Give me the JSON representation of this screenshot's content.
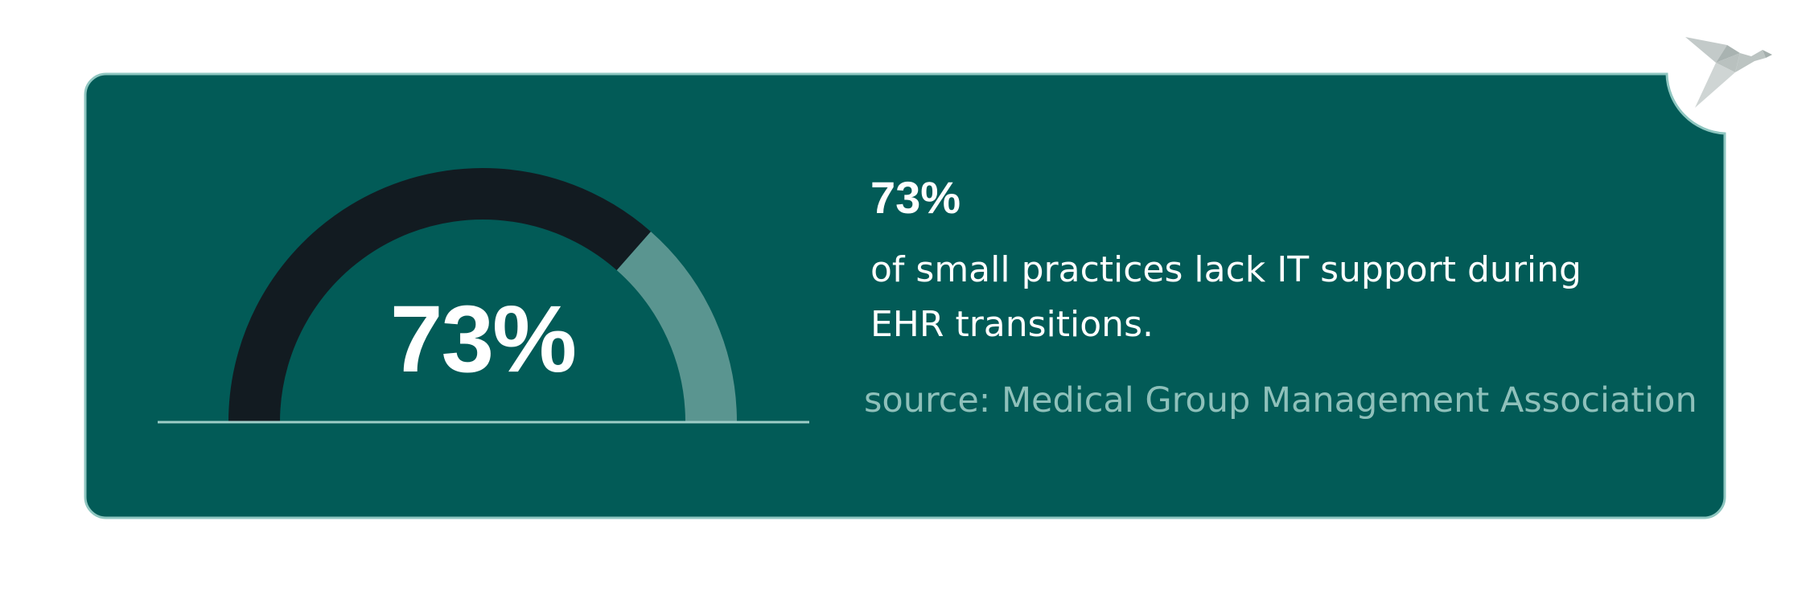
{
  "chart_data": {
    "type": "gauge",
    "value": 73,
    "max": 100,
    "unit": "%",
    "value_label": "73%",
    "colors": {
      "filled": "#121b21",
      "remaining": "#5a9590"
    }
  },
  "stat": {
    "headline": "73%",
    "description": "of small practices lack IT support during EHR transitions.",
    "source": "source: Medical Group Management Association"
  },
  "theme": {
    "card_background": "#025b57",
    "card_border": "#8ec6c0",
    "baseline": "#9ecdc7",
    "logo": "bird-logo-icon"
  }
}
